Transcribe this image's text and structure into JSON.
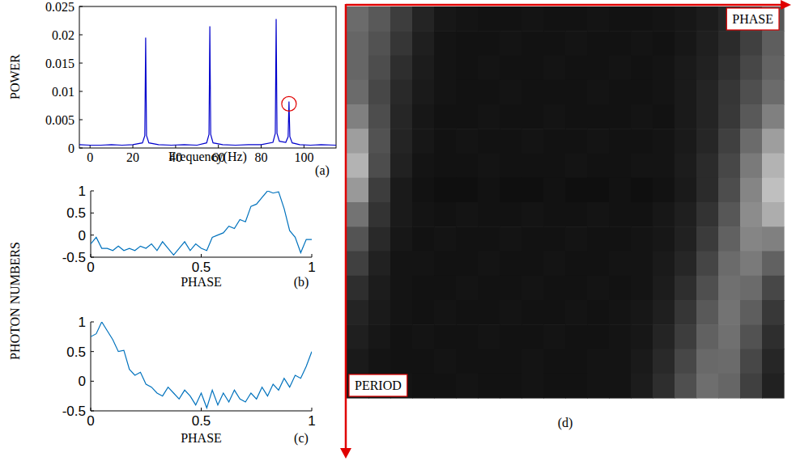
{
  "chart_data": [
    {
      "type": "line",
      "panel": "(a)",
      "xlabel": "Frequency(Hz)",
      "ylabel": "POWER",
      "xlim": [
        -5,
        115
      ],
      "ylim": [
        0,
        0.025
      ],
      "xticks": [
        0,
        20,
        40,
        60,
        80,
        100
      ],
      "yticks": [
        0,
        0.005,
        0.01,
        0.015,
        0.02,
        0.025
      ],
      "grid": false,
      "x": [
        -5,
        0,
        5,
        10,
        15,
        20,
        24.5,
        25.6,
        26,
        26.4,
        27.5,
        32,
        38,
        44,
        50,
        54.5,
        55.6,
        56,
        56.4,
        57.5,
        62,
        68,
        74,
        80,
        85.5,
        86.6,
        87,
        87.4,
        88.5,
        91.5,
        92.6,
        93,
        93.4,
        94.5,
        98,
        103,
        108,
        115
      ],
      "series": [
        {
          "color": "#0000cc",
          "values": [
            0.0006,
            0.0005,
            0.0005,
            0.0006,
            0.0005,
            0.0006,
            0.0009,
            0.0022,
            0.0195,
            0.0022,
            0.0009,
            0.0006,
            0.0005,
            0.0006,
            0.0005,
            0.0009,
            0.0024,
            0.0215,
            0.0024,
            0.0009,
            0.0006,
            0.0005,
            0.0006,
            0.0006,
            0.001,
            0.0026,
            0.0228,
            0.0026,
            0.0012,
            0.001,
            0.002,
            0.0082,
            0.002,
            0.0009,
            0.0006,
            0.0005,
            0.0006,
            0.0005
          ]
        }
      ],
      "highlight": {
        "x": 93,
        "y": 0.0078,
        "color": "#e00000",
        "marker": "circle"
      }
    },
    {
      "type": "line",
      "panel": "(b)",
      "xlabel": "PHASE",
      "ylabel": "PHOTON NUMBERS",
      "xlim": [
        0,
        1
      ],
      "ylim": [
        -0.5,
        1
      ],
      "xticks": [
        0,
        0.5,
        1
      ],
      "yticks": [
        -0.5,
        0,
        0.5,
        1
      ],
      "grid": false,
      "x": [
        0,
        0.025,
        0.05,
        0.075,
        0.1,
        0.125,
        0.15,
        0.175,
        0.2,
        0.225,
        0.25,
        0.275,
        0.3,
        0.325,
        0.35,
        0.375,
        0.4,
        0.425,
        0.45,
        0.475,
        0.5,
        0.525,
        0.55,
        0.575,
        0.6,
        0.625,
        0.65,
        0.675,
        0.7,
        0.725,
        0.75,
        0.775,
        0.8,
        0.825,
        0.85,
        0.875,
        0.9,
        0.925,
        0.95,
        0.975,
        1
      ],
      "series": [
        {
          "color": "#0072bd",
          "values": [
            -0.2,
            -0.05,
            -0.3,
            -0.3,
            -0.35,
            -0.25,
            -0.35,
            -0.3,
            -0.35,
            -0.25,
            -0.3,
            -0.2,
            -0.35,
            -0.15,
            -0.3,
            -0.45,
            -0.3,
            -0.15,
            -0.35,
            -0.2,
            -0.3,
            -0.35,
            -0.05,
            0,
            0.05,
            0.2,
            0.15,
            0.35,
            0.3,
            0.65,
            0.7,
            0.85,
            1,
            0.95,
            0.98,
            0.6,
            0.1,
            -0.05,
            -0.4,
            -0.1,
            -0.1
          ]
        }
      ]
    },
    {
      "type": "line",
      "panel": "(c)",
      "xlabel": "PHASE",
      "xlim": [
        0,
        1
      ],
      "ylim": [
        -0.5,
        1
      ],
      "xticks": [
        0,
        0.5,
        1
      ],
      "yticks": [
        -0.5,
        0,
        0.5,
        1
      ],
      "grid": false,
      "x": [
        0,
        0.025,
        0.05,
        0.075,
        0.1,
        0.125,
        0.15,
        0.175,
        0.2,
        0.225,
        0.25,
        0.275,
        0.3,
        0.325,
        0.35,
        0.375,
        0.4,
        0.425,
        0.45,
        0.475,
        0.5,
        0.525,
        0.55,
        0.575,
        0.6,
        0.625,
        0.65,
        0.675,
        0.7,
        0.725,
        0.75,
        0.775,
        0.8,
        0.825,
        0.85,
        0.875,
        0.9,
        0.925,
        0.95,
        0.975,
        1
      ],
      "series": [
        {
          "color": "#0072bd",
          "values": [
            0.75,
            0.8,
            1,
            0.85,
            0.7,
            0.5,
            0.52,
            0.2,
            0.1,
            0.15,
            -0.05,
            -0.1,
            -0.2,
            -0.25,
            -0.1,
            -0.2,
            -0.3,
            -0.15,
            -0.25,
            -0.4,
            -0.2,
            -0.45,
            -0.15,
            -0.4,
            -0.2,
            -0.35,
            -0.15,
            -0.3,
            -0.35,
            -0.2,
            -0.3,
            -0.1,
            -0.25,
            -0.05,
            -0.15,
            0.05,
            -0.1,
            0.1,
            0.05,
            0.25,
            0.5
          ]
        }
      ]
    },
    {
      "type": "heatmap",
      "panel": "(d)",
      "xlabel": "PHASE",
      "ylabel": "PERIOD",
      "tick_labels": false,
      "value_range": [
        0,
        1
      ],
      "cells": [
        [
          0.42,
          0.35,
          0.24,
          0.14,
          0.09,
          0.08,
          0.07,
          0.07,
          0.08,
          0.07,
          0.07,
          0.08,
          0.07,
          0.07,
          0.08,
          0.09,
          0.11,
          0.15,
          0.22,
          0.34
        ],
        [
          0.4,
          0.32,
          0.21,
          0.12,
          0.08,
          0.07,
          0.07,
          0.08,
          0.07,
          0.07,
          0.08,
          0.07,
          0.07,
          0.08,
          0.07,
          0.09,
          0.12,
          0.17,
          0.25,
          0.37
        ],
        [
          0.4,
          0.3,
          0.18,
          0.11,
          0.08,
          0.07,
          0.08,
          0.07,
          0.07,
          0.08,
          0.07,
          0.07,
          0.08,
          0.07,
          0.08,
          0.1,
          0.13,
          0.19,
          0.28,
          0.39
        ],
        [
          0.42,
          0.28,
          0.16,
          0.1,
          0.08,
          0.07,
          0.07,
          0.08,
          0.07,
          0.07,
          0.07,
          0.08,
          0.07,
          0.07,
          0.08,
          0.1,
          0.14,
          0.21,
          0.31,
          0.42
        ],
        [
          0.5,
          0.3,
          0.15,
          0.09,
          0.07,
          0.07,
          0.08,
          0.07,
          0.07,
          0.08,
          0.07,
          0.07,
          0.07,
          0.08,
          0.07,
          0.1,
          0.14,
          0.22,
          0.35,
          0.5
        ],
        [
          0.62,
          0.32,
          0.14,
          0.09,
          0.07,
          0.08,
          0.07,
          0.07,
          0.08,
          0.07,
          0.07,
          0.08,
          0.07,
          0.07,
          0.08,
          0.1,
          0.15,
          0.25,
          0.42,
          0.62
        ],
        [
          0.7,
          0.3,
          0.13,
          0.08,
          0.07,
          0.07,
          0.08,
          0.07,
          0.07,
          0.07,
          0.08,
          0.07,
          0.07,
          0.08,
          0.08,
          0.11,
          0.17,
          0.28,
          0.48,
          0.7
        ],
        [
          0.6,
          0.24,
          0.1,
          0.07,
          0.06,
          0.06,
          0.07,
          0.06,
          0.06,
          0.07,
          0.06,
          0.06,
          0.07,
          0.06,
          0.07,
          0.1,
          0.17,
          0.3,
          0.52,
          0.75
        ],
        [
          0.45,
          0.2,
          0.1,
          0.08,
          0.07,
          0.08,
          0.07,
          0.07,
          0.08,
          0.07,
          0.07,
          0.08,
          0.07,
          0.07,
          0.09,
          0.12,
          0.2,
          0.34,
          0.55,
          0.68
        ],
        [
          0.33,
          0.16,
          0.09,
          0.07,
          0.08,
          0.07,
          0.07,
          0.08,
          0.07,
          0.07,
          0.08,
          0.07,
          0.07,
          0.08,
          0.09,
          0.13,
          0.23,
          0.38,
          0.52,
          0.5
        ],
        [
          0.25,
          0.13,
          0.08,
          0.08,
          0.07,
          0.07,
          0.08,
          0.07,
          0.07,
          0.08,
          0.07,
          0.07,
          0.08,
          0.08,
          0.1,
          0.15,
          0.27,
          0.42,
          0.48,
          0.38
        ],
        [
          0.18,
          0.11,
          0.08,
          0.07,
          0.07,
          0.08,
          0.07,
          0.07,
          0.08,
          0.07,
          0.07,
          0.08,
          0.07,
          0.08,
          0.11,
          0.18,
          0.31,
          0.44,
          0.42,
          0.28
        ],
        [
          0.14,
          0.1,
          0.08,
          0.07,
          0.08,
          0.07,
          0.07,
          0.08,
          0.07,
          0.07,
          0.08,
          0.07,
          0.08,
          0.09,
          0.12,
          0.21,
          0.35,
          0.45,
          0.37,
          0.22
        ],
        [
          0.12,
          0.09,
          0.07,
          0.08,
          0.07,
          0.07,
          0.08,
          0.07,
          0.07,
          0.08,
          0.07,
          0.07,
          0.08,
          0.09,
          0.14,
          0.24,
          0.38,
          0.44,
          0.32,
          0.18
        ],
        [
          0.1,
          0.08,
          0.07,
          0.07,
          0.08,
          0.07,
          0.07,
          0.07,
          0.08,
          0.07,
          0.07,
          0.08,
          0.08,
          0.1,
          0.16,
          0.28,
          0.41,
          0.42,
          0.28,
          0.15
        ],
        [
          0.09,
          0.08,
          0.08,
          0.07,
          0.07,
          0.08,
          0.07,
          0.07,
          0.08,
          0.07,
          0.07,
          0.08,
          0.08,
          0.11,
          0.18,
          0.31,
          0.43,
          0.4,
          0.25,
          0.13
        ]
      ]
    }
  ]
}
